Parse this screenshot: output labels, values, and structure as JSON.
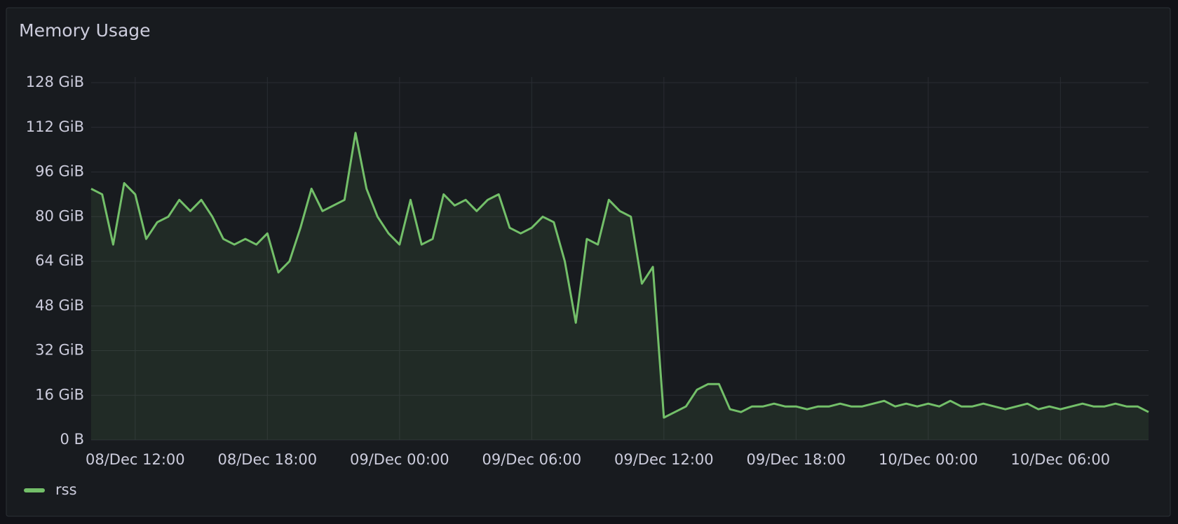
{
  "chart_data": {
    "type": "line",
    "title": "Memory Usage",
    "x": [
      "08/Dec 10:00",
      "08/Dec 10:30",
      "08/Dec 11:00",
      "08/Dec 11:30",
      "08/Dec 12:00",
      "08/Dec 12:30",
      "08/Dec 13:00",
      "08/Dec 13:30",
      "08/Dec 14:00",
      "08/Dec 14:30",
      "08/Dec 15:00",
      "08/Dec 15:30",
      "08/Dec 16:00",
      "08/Dec 16:30",
      "08/Dec 17:00",
      "08/Dec 17:30",
      "08/Dec 18:00",
      "08/Dec 18:30",
      "08/Dec 19:00",
      "08/Dec 19:30",
      "08/Dec 20:00",
      "08/Dec 20:30",
      "08/Dec 21:00",
      "08/Dec 21:30",
      "08/Dec 22:00",
      "08/Dec 22:30",
      "08/Dec 23:00",
      "08/Dec 23:30",
      "09/Dec 00:00",
      "09/Dec 00:30",
      "09/Dec 01:00",
      "09/Dec 01:30",
      "09/Dec 02:00",
      "09/Dec 02:30",
      "09/Dec 03:00",
      "09/Dec 03:30",
      "09/Dec 04:00",
      "09/Dec 04:30",
      "09/Dec 05:00",
      "09/Dec 05:30",
      "09/Dec 06:00",
      "09/Dec 06:30",
      "09/Dec 07:00",
      "09/Dec 07:30",
      "09/Dec 08:00",
      "09/Dec 08:30",
      "09/Dec 09:00",
      "09/Dec 09:30",
      "09/Dec 10:00",
      "09/Dec 10:30",
      "09/Dec 11:00",
      "09/Dec 11:30",
      "09/Dec 12:00",
      "09/Dec 12:30",
      "09/Dec 13:00",
      "09/Dec 13:30",
      "09/Dec 14:00",
      "09/Dec 14:30",
      "09/Dec 15:00",
      "09/Dec 15:30",
      "09/Dec 16:00",
      "09/Dec 16:30",
      "09/Dec 17:00",
      "09/Dec 17:30",
      "09/Dec 18:00",
      "09/Dec 18:30",
      "09/Dec 19:00",
      "09/Dec 19:30",
      "09/Dec 20:00",
      "09/Dec 20:30",
      "09/Dec 21:00",
      "09/Dec 21:30",
      "09/Dec 22:00",
      "09/Dec 22:30",
      "09/Dec 23:00",
      "09/Dec 23:30",
      "10/Dec 00:00",
      "10/Dec 00:30",
      "10/Dec 01:00",
      "10/Dec 01:30",
      "10/Dec 02:00",
      "10/Dec 02:30",
      "10/Dec 03:00",
      "10/Dec 03:30",
      "10/Dec 04:00",
      "10/Dec 04:30",
      "10/Dec 05:00",
      "10/Dec 05:30",
      "10/Dec 06:00",
      "10/Dec 06:30",
      "10/Dec 07:00",
      "10/Dec 07:30",
      "10/Dec 08:00",
      "10/Dec 08:30",
      "10/Dec 09:00",
      "10/Dec 09:30",
      "10/Dec 10:00"
    ],
    "series": [
      {
        "name": "rss",
        "color": "#73bf69",
        "values": [
          90,
          88,
          70,
          92,
          88,
          72,
          78,
          80,
          86,
          82,
          86,
          80,
          72,
          70,
          72,
          70,
          74,
          60,
          64,
          76,
          90,
          82,
          84,
          86,
          110,
          90,
          80,
          74,
          70,
          86,
          70,
          72,
          88,
          84,
          86,
          82,
          86,
          88,
          76,
          74,
          76,
          80,
          78,
          64,
          42,
          72,
          70,
          86,
          82,
          80,
          56,
          62,
          8,
          10,
          12,
          18,
          20,
          20,
          11,
          10,
          12,
          12,
          13,
          12,
          12,
          11,
          12,
          12,
          13,
          12,
          12,
          13,
          14,
          12,
          13,
          12,
          13,
          12,
          14,
          12,
          12,
          13,
          12,
          11,
          12,
          13,
          11,
          12,
          11,
          12,
          13,
          12,
          12,
          13,
          12,
          12,
          10
        ]
      }
    ],
    "xlim": [
      "08/Dec 10:00",
      "10/Dec 10:00"
    ],
    "xticks": [
      "08/Dec 12:00",
      "08/Dec 18:00",
      "09/Dec 00:00",
      "09/Dec 06:00",
      "09/Dec 12:00",
      "09/Dec 18:00",
      "10/Dec 00:00",
      "10/Dec 06:00"
    ],
    "ylim": [
      0,
      128
    ],
    "yticks": [
      {
        "value": 0,
        "label": "0 B"
      },
      {
        "value": 16,
        "label": "16 GiB"
      },
      {
        "value": 32,
        "label": "32 GiB"
      },
      {
        "value": 48,
        "label": "48 GiB"
      },
      {
        "value": 64,
        "label": "64 GiB"
      },
      {
        "value": 80,
        "label": "80 GiB"
      },
      {
        "value": 96,
        "label": "96 GiB"
      },
      {
        "value": 112,
        "label": "112 GiB"
      },
      {
        "value": 128,
        "label": "128 GiB"
      }
    ],
    "grid": true
  }
}
